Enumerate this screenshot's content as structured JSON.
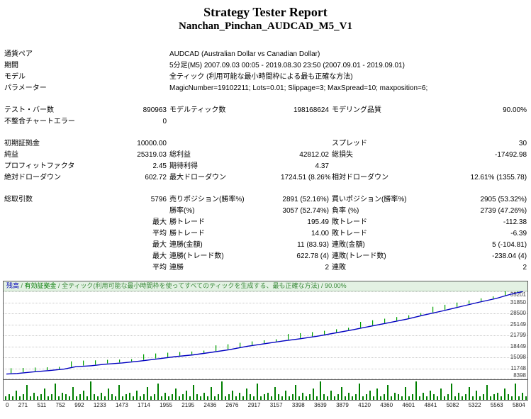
{
  "report": {
    "title": "Strategy Tester Report",
    "subtitle": "Nanchan_Pinchan_AUDCAD_M5_V1"
  },
  "table": {
    "rows": [
      {
        "layout": "info",
        "cells": [
          "通貨ペア",
          "AUDCAD (Australian Dollar vs Canadian Dollar)"
        ]
      },
      {
        "layout": "info",
        "cells": [
          "期間",
          "5分足(M5) 2007.09.03 00:05 - 2019.08.30 23:50 (2007.09.01 - 2019.09.01)"
        ]
      },
      {
        "layout": "info",
        "cells": [
          "モデル",
          "全ティック (利用可能な最小時間枠による最も正確な方法)"
        ]
      },
      {
        "layout": "info",
        "cells": [
          "パラメーター",
          "MagicNumber=19102211; Lots=0.01; Slippage=3; MaxSpread=10; maxposition=6;"
        ]
      },
      {
        "layout": "spacer"
      },
      {
        "layout": "stats",
        "cells": [
          "テスト・バー数",
          "890963",
          "モデルティック数",
          "198168624",
          "モデリング品質",
          "90.00%"
        ]
      },
      {
        "layout": "stats",
        "cells": [
          "不整合チャートエラー",
          "0",
          "",
          "",
          "",
          ""
        ]
      },
      {
        "layout": "spacer"
      },
      {
        "layout": "stats",
        "cells": [
          "初期証拠金",
          "10000.00",
          "",
          "",
          "スプレッド",
          "30"
        ]
      },
      {
        "layout": "stats",
        "cells": [
          "純益",
          "25319.03",
          "総利益",
          "42812.02",
          "総損失",
          "-17492.98"
        ]
      },
      {
        "layout": "stats",
        "cells": [
          "プロフィットファクタ",
          "2.45",
          "期待利得",
          "4.37",
          "",
          ""
        ]
      },
      {
        "layout": "stats",
        "cells": [
          "絶対ドローダウン",
          "602.72",
          "最大ドローダウン",
          "1724.51 (8.26%)",
          "相対ドローダウン",
          "12.61% (1355.78)"
        ]
      },
      {
        "layout": "spacer"
      },
      {
        "layout": "stats",
        "cells": [
          "総取引数",
          "5796",
          "売りポジション(勝率%)",
          "2891 (52.16%)",
          "買いポジション(勝率%)",
          "2905 (53.32%)"
        ]
      },
      {
        "layout": "stats",
        "cells": [
          "",
          "",
          "勝率(%)",
          "3057 (52.74%)",
          "負率 (%)",
          "2739 (47.26%)"
        ]
      },
      {
        "layout": "stats",
        "cells": [
          "",
          "最大",
          "勝トレード",
          "195.49",
          "敗トレード",
          "-112.38"
        ]
      },
      {
        "layout": "stats",
        "cells": [
          "",
          "平均",
          "勝トレード",
          "14.00",
          "敗トレード",
          "-6.39"
        ]
      },
      {
        "layout": "stats",
        "cells": [
          "",
          "最大",
          "連勝(金額)",
          "11 (83.93)",
          "連敗(金額)",
          "5 (-104.81)"
        ]
      },
      {
        "layout": "stats",
        "cells": [
          "",
          "最大",
          "連勝(トレード数)",
          "622.78 (4)",
          "連敗(トレード数)",
          "-238.04 (4)"
        ]
      },
      {
        "layout": "stats",
        "cells": [
          "",
          "平均",
          "連勝",
          "2",
          "連敗",
          "2"
        ]
      }
    ]
  },
  "chart_data": {
    "type": "line",
    "caption": {
      "balance": "残高",
      "equity": "有効証拠金",
      "sep": " / ",
      "model": "全ティック(利用可能な最小時間枠を使ってすべてのティックを生成する、最も正確な方法)",
      "quality": "90.00%"
    },
    "colors": {
      "balance_line": "#0000c0",
      "equity_tick": "#00a000",
      "lot_bar": "#007f00"
    },
    "y_range": [
      8398,
      35201
    ],
    "y_ticks": [
      "35201",
      "31850",
      "28500",
      "25149",
      "21799",
      "18449",
      "15098",
      "11748",
      "8398"
    ],
    "x_range": [
      0,
      5804
    ],
    "x_ticks": [
      "0",
      "271",
      "511",
      "752",
      "992",
      "1233",
      "1473",
      "1714",
      "1955",
      "2195",
      "2436",
      "2676",
      "2917",
      "3157",
      "3398",
      "3639",
      "3879",
      "4120",
      "4360",
      "4601",
      "4841",
      "5082",
      "5322",
      "5563",
      "5804"
    ],
    "series": [
      {
        "name": "残高",
        "points": [
          [
            0,
            10000
          ],
          [
            120,
            10180
          ],
          [
            300,
            10650
          ],
          [
            480,
            11050
          ],
          [
            650,
            11500
          ],
          [
            780,
            12250
          ],
          [
            950,
            12520
          ],
          [
            1100,
            12980
          ],
          [
            1300,
            13400
          ],
          [
            1500,
            13950
          ],
          [
            1700,
            14620
          ],
          [
            1900,
            15320
          ],
          [
            2100,
            15850
          ],
          [
            2300,
            16620
          ],
          [
            2500,
            17420
          ],
          [
            2700,
            18420
          ],
          [
            2900,
            19250
          ],
          [
            3100,
            20050
          ],
          [
            3300,
            20760
          ],
          [
            3500,
            21560
          ],
          [
            3700,
            22560
          ],
          [
            3900,
            23560
          ],
          [
            4100,
            24640
          ],
          [
            4300,
            25660
          ],
          [
            4500,
            26740
          ],
          [
            4700,
            28040
          ],
          [
            4900,
            29260
          ],
          [
            5100,
            30560
          ],
          [
            5300,
            31840
          ],
          [
            5500,
            33040
          ],
          [
            5650,
            34220
          ],
          [
            5804,
            35200
          ]
        ]
      }
    ],
    "lots_bars": [
      2,
      3,
      2,
      5,
      2,
      3,
      8,
      2,
      4,
      2,
      3,
      6,
      2,
      3,
      9,
      2,
      4,
      3,
      2,
      7,
      2,
      3,
      5,
      2,
      10,
      3,
      2,
      4,
      2,
      6,
      3,
      2,
      8,
      2,
      3,
      4,
      2,
      5,
      2,
      3,
      7,
      2,
      3,
      9,
      2,
      4,
      2,
      3,
      6,
      2,
      3,
      5,
      2,
      8,
      3,
      2,
      4,
      2,
      7,
      2,
      3,
      10,
      2,
      3,
      5,
      2,
      4,
      2,
      6,
      3,
      2,
      9,
      2,
      3,
      4,
      2,
      7,
      3,
      2,
      5,
      2,
      3,
      8,
      2,
      4,
      2,
      3,
      6,
      2,
      10,
      3,
      2,
      5,
      2,
      3,
      7,
      2,
      4,
      2,
      3,
      9,
      2,
      3,
      5,
      2,
      6,
      2,
      3,
      8,
      2,
      4,
      3,
      2,
      7,
      2,
      3,
      10,
      2,
      4,
      2,
      5,
      3,
      2,
      6,
      2,
      3,
      9,
      2,
      4,
      2,
      3,
      7,
      2,
      5,
      2,
      3,
      8,
      2,
      3,
      4,
      2,
      6,
      3,
      2,
      9,
      2,
      4,
      2
    ]
  }
}
